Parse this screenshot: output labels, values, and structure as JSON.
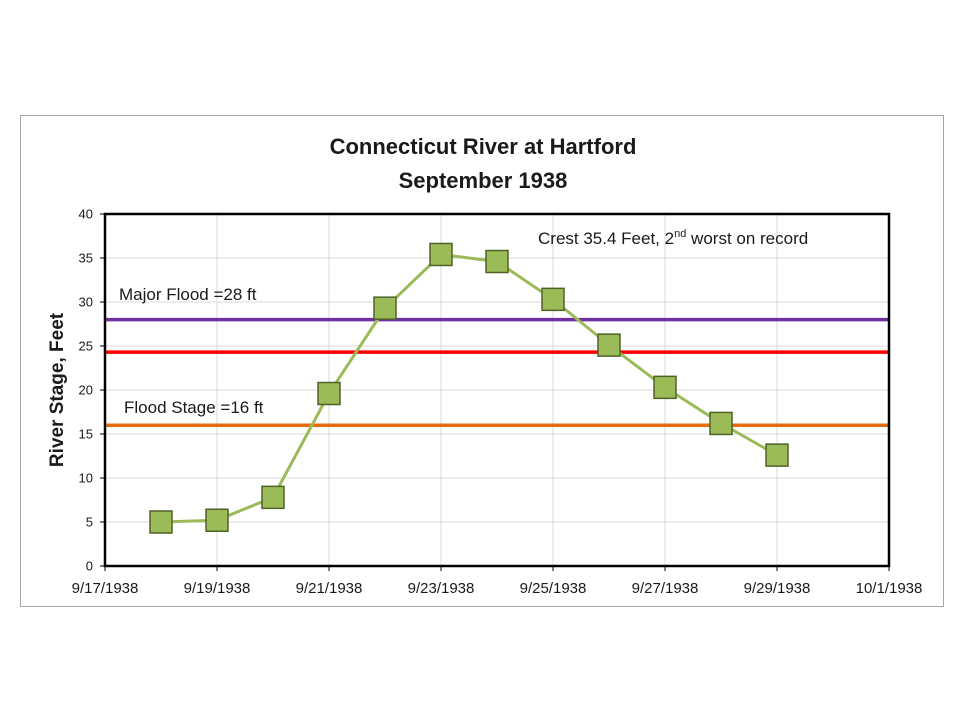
{
  "chart_data": {
    "type": "line",
    "title": [
      "Connecticut River at Hartford",
      "September 1938"
    ],
    "ylabel": "River Stage, Feet",
    "xlabel": "",
    "ylim": [
      0,
      40
    ],
    "yticks": [
      0,
      5,
      10,
      15,
      20,
      25,
      30,
      35,
      40
    ],
    "xlim": [
      "1938-09-17",
      "1938-10-01"
    ],
    "xtick_labels": [
      "9/17/1938",
      "9/19/1938",
      "9/21/1938",
      "9/23/1938",
      "9/25/1938",
      "9/27/1938",
      "9/29/1938",
      "10/1/1938"
    ],
    "xticks": [
      "1938-09-17",
      "1938-09-19",
      "1938-09-21",
      "1938-09-23",
      "1938-09-25",
      "1938-09-27",
      "1938-09-29",
      "1938-10-01"
    ],
    "grid": true,
    "series": [
      {
        "x": [
          "1938-09-18",
          "1938-09-19",
          "1938-09-20",
          "1938-09-21",
          "1938-09-22",
          "1938-09-23",
          "1938-09-24",
          "1938-09-25",
          "1938-09-26",
          "1938-09-27",
          "1938-09-28",
          "1938-09-29"
        ],
        "values": [
          5.0,
          5.2,
          7.8,
          19.6,
          29.3,
          35.4,
          34.6,
          30.3,
          25.1,
          20.3,
          16.2,
          12.6
        ],
        "color": "#9bbb59",
        "line_color": "#9bbb59",
        "marker": "square",
        "marker_fill": "#9bbb59",
        "marker_edge": "#4f6228"
      }
    ],
    "reference_lines": [
      {
        "y": 28,
        "color": "#7030a0"
      },
      {
        "y": 24.3,
        "color": "#ff0000"
      },
      {
        "y": 16,
        "color": "#e46c0a"
      }
    ],
    "annotations": [
      {
        "text_before": "Crest 35.4 Feet, 2",
        "superscript": "nd",
        "text_after": " worst on record"
      },
      {
        "text": "Major Flood =28 ft"
      },
      {
        "text": "Flood Stage =16 ft"
      }
    ]
  }
}
